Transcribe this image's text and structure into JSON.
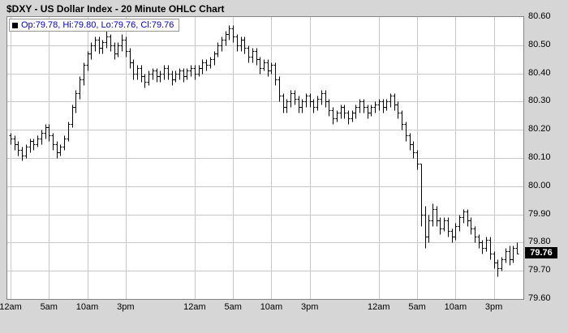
{
  "window": {
    "title": "$DXY - US Dollar Index - 20 Minute OHLC Chart"
  },
  "legend": {
    "text": "Op:79.78, Hi:79.80, Lo:79.76, Cl:79.76",
    "swatch_color": "#000000",
    "text_color": "#0000cc"
  },
  "chart_data": {
    "type": "ohlc",
    "title": "$DXY - US Dollar Index - 20 Minute OHLC Chart",
    "symbol": "$DXY",
    "interval": "20 Minute",
    "grid": true,
    "grid_color": "#c9c9c9",
    "bar_color": "#000000",
    "legend_position": "top-left",
    "y_axis_side": "right",
    "ylim": [
      79.6,
      80.6
    ],
    "y_ticks": [
      {
        "v": 80.6,
        "label": "80.60"
      },
      {
        "v": 80.5,
        "label": "80.50"
      },
      {
        "v": 80.4,
        "label": "80.40"
      },
      {
        "v": 80.3,
        "label": "80.30"
      },
      {
        "v": 80.2,
        "label": "80.20"
      },
      {
        "v": 80.1,
        "label": "80.10"
      },
      {
        "v": 80.0,
        "label": "80.00"
      },
      {
        "v": 79.9,
        "label": "79.90"
      },
      {
        "v": 79.8,
        "label": "79.80"
      },
      {
        "v": 79.7,
        "label": "79.70"
      },
      {
        "v": 79.6,
        "label": "79.60"
      }
    ],
    "x_ticks": [
      {
        "i": 0,
        "label": "12am"
      },
      {
        "i": 10,
        "label": "5am"
      },
      {
        "i": 20,
        "label": "10am"
      },
      {
        "i": 30,
        "label": "3pm"
      },
      {
        "i": 48,
        "label": "12am"
      },
      {
        "i": 58,
        "label": "5am"
      },
      {
        "i": 68,
        "label": "10am"
      },
      {
        "i": 78,
        "label": "3pm"
      },
      {
        "i": 96,
        "label": "12am"
      },
      {
        "i": 106,
        "label": "5am"
      },
      {
        "i": 116,
        "label": "10am"
      },
      {
        "i": 126,
        "label": "3pm"
      }
    ],
    "last_price": {
      "value": 79.76,
      "label": "79.76"
    },
    "last_bar": {
      "open": 79.78,
      "high": 79.8,
      "low": 79.76,
      "close": 79.76
    },
    "bars": [
      [
        80.18,
        80.19,
        80.15,
        80.17
      ],
      [
        80.17,
        80.18,
        80.13,
        80.15
      ],
      [
        80.15,
        80.16,
        80.11,
        80.13
      ],
      [
        80.13,
        80.14,
        80.09,
        80.11
      ],
      [
        80.11,
        80.15,
        80.1,
        80.14
      ],
      [
        80.14,
        80.17,
        80.12,
        80.16
      ],
      [
        80.16,
        80.17,
        80.13,
        80.15
      ],
      [
        80.15,
        80.18,
        80.14,
        80.17
      ],
      [
        80.17,
        80.2,
        80.15,
        80.19
      ],
      [
        80.19,
        80.22,
        80.17,
        80.21
      ],
      [
        80.21,
        80.22,
        80.16,
        80.18
      ],
      [
        80.18,
        80.19,
        80.13,
        80.15
      ],
      [
        80.15,
        80.16,
        80.1,
        80.12
      ],
      [
        80.12,
        80.15,
        80.11,
        80.14
      ],
      [
        80.14,
        80.18,
        80.13,
        80.17
      ],
      [
        80.17,
        80.23,
        80.16,
        80.22
      ],
      [
        80.22,
        80.29,
        80.21,
        80.28
      ],
      [
        80.28,
        80.34,
        80.26,
        80.33
      ],
      [
        80.33,
        80.39,
        80.31,
        80.38
      ],
      [
        80.38,
        80.44,
        80.36,
        80.43
      ],
      [
        80.43,
        80.48,
        80.41,
        80.47
      ],
      [
        80.47,
        80.51,
        80.45,
        80.5
      ],
      [
        80.5,
        80.53,
        80.48,
        80.52
      ],
      [
        80.52,
        80.53,
        80.47,
        80.49
      ],
      [
        80.49,
        80.52,
        80.47,
        80.51
      ],
      [
        80.51,
        80.55,
        80.49,
        80.53
      ],
      [
        80.53,
        80.54,
        80.48,
        80.5
      ],
      [
        80.5,
        80.51,
        80.45,
        80.47
      ],
      [
        80.47,
        80.51,
        80.46,
        80.5
      ],
      [
        80.5,
        80.54,
        80.48,
        80.52
      ],
      [
        80.52,
        80.53,
        80.46,
        80.48
      ],
      [
        80.48,
        80.49,
        80.42,
        80.44
      ],
      [
        80.44,
        80.45,
        80.38,
        80.4
      ],
      [
        80.4,
        80.43,
        80.38,
        80.42
      ],
      [
        80.42,
        80.43,
        80.37,
        80.39
      ],
      [
        80.39,
        80.4,
        80.35,
        80.37
      ],
      [
        80.37,
        80.41,
        80.36,
        80.4
      ],
      [
        80.4,
        80.42,
        80.38,
        80.41
      ],
      [
        80.41,
        80.42,
        80.37,
        80.39
      ],
      [
        80.39,
        80.41,
        80.37,
        80.4
      ],
      [
        80.4,
        80.43,
        80.38,
        80.42
      ],
      [
        80.42,
        80.43,
        80.38,
        80.4
      ],
      [
        80.4,
        80.41,
        80.36,
        80.38
      ],
      [
        80.38,
        80.41,
        80.37,
        80.4
      ],
      [
        80.4,
        80.42,
        80.38,
        80.41
      ],
      [
        80.41,
        80.42,
        80.37,
        80.39
      ],
      [
        80.39,
        80.42,
        80.38,
        80.41
      ],
      [
        80.41,
        80.43,
        80.39,
        80.42
      ],
      [
        80.42,
        80.43,
        80.38,
        80.4
      ],
      [
        80.4,
        80.43,
        80.39,
        80.42
      ],
      [
        80.42,
        80.45,
        80.4,
        80.44
      ],
      [
        80.44,
        80.45,
        80.41,
        80.43
      ],
      [
        80.43,
        80.46,
        80.42,
        80.45
      ],
      [
        80.45,
        80.48,
        80.43,
        80.47
      ],
      [
        80.47,
        80.51,
        80.46,
        80.5
      ],
      [
        80.5,
        80.53,
        80.48,
        80.52
      ],
      [
        80.52,
        80.55,
        80.5,
        80.54
      ],
      [
        80.54,
        80.57,
        80.52,
        80.56
      ],
      [
        80.56,
        80.57,
        80.51,
        80.53
      ],
      [
        80.53,
        80.54,
        80.48,
        80.5
      ],
      [
        80.5,
        80.53,
        80.48,
        80.52
      ],
      [
        80.52,
        80.53,
        80.47,
        80.49
      ],
      [
        80.49,
        80.5,
        80.44,
        80.46
      ],
      [
        80.46,
        80.49,
        80.44,
        80.48
      ],
      [
        80.48,
        80.49,
        80.43,
        80.45
      ],
      [
        80.45,
        80.46,
        80.4,
        80.42
      ],
      [
        80.42,
        80.45,
        80.41,
        80.44
      ],
      [
        80.44,
        80.45,
        80.39,
        80.41
      ],
      [
        80.41,
        80.44,
        80.4,
        80.43
      ],
      [
        80.43,
        80.44,
        80.36,
        80.38
      ],
      [
        80.38,
        80.39,
        80.3,
        80.32
      ],
      [
        80.32,
        80.33,
        80.26,
        80.28
      ],
      [
        80.28,
        80.31,
        80.26,
        80.3
      ],
      [
        80.3,
        80.34,
        80.28,
        80.33
      ],
      [
        80.33,
        80.34,
        80.29,
        80.31
      ],
      [
        80.31,
        80.32,
        80.26,
        80.28
      ],
      [
        80.28,
        80.31,
        80.26,
        80.3
      ],
      [
        80.3,
        80.33,
        80.28,
        80.32
      ],
      [
        80.32,
        80.33,
        80.28,
        80.3
      ],
      [
        80.3,
        80.31,
        80.26,
        80.28
      ],
      [
        80.28,
        80.32,
        80.27,
        80.31
      ],
      [
        80.31,
        80.34,
        80.29,
        80.33
      ],
      [
        80.33,
        80.34,
        80.28,
        80.3
      ],
      [
        80.3,
        80.31,
        80.25,
        80.27
      ],
      [
        80.27,
        80.28,
        80.22,
        80.24
      ],
      [
        80.24,
        80.27,
        80.23,
        80.26
      ],
      [
        80.26,
        80.29,
        80.24,
        80.28
      ],
      [
        80.28,
        80.29,
        80.24,
        80.26
      ],
      [
        80.26,
        80.27,
        80.22,
        80.24
      ],
      [
        80.24,
        80.27,
        80.23,
        80.26
      ],
      [
        80.26,
        80.29,
        80.24,
        80.28
      ],
      [
        80.28,
        80.31,
        80.26,
        80.3
      ],
      [
        80.3,
        80.31,
        80.26,
        80.28
      ],
      [
        80.28,
        80.29,
        80.24,
        80.26
      ],
      [
        80.26,
        80.29,
        80.25,
        80.28
      ],
      [
        80.28,
        80.3,
        80.26,
        80.29
      ],
      [
        80.29,
        80.31,
        80.27,
        80.3
      ],
      [
        80.3,
        80.31,
        80.26,
        80.28
      ],
      [
        80.28,
        80.31,
        80.27,
        80.3
      ],
      [
        80.3,
        80.33,
        80.28,
        80.32
      ],
      [
        80.32,
        80.33,
        80.27,
        80.29
      ],
      [
        80.29,
        80.3,
        80.24,
        80.26
      ],
      [
        80.26,
        80.27,
        80.2,
        80.22
      ],
      [
        80.22,
        80.23,
        80.16,
        80.18
      ],
      [
        80.18,
        80.19,
        80.13,
        80.15
      ],
      [
        80.15,
        80.16,
        80.1,
        80.12
      ],
      [
        80.12,
        80.13,
        80.06,
        80.08
      ],
      [
        80.08,
        80.08,
        79.86,
        79.9
      ],
      [
        79.9,
        79.93,
        79.78,
        79.82
      ],
      [
        79.82,
        79.9,
        79.8,
        79.88
      ],
      [
        79.88,
        79.94,
        79.86,
        79.92
      ],
      [
        79.92,
        79.93,
        79.86,
        79.88
      ],
      [
        79.88,
        79.89,
        79.83,
        79.85
      ],
      [
        79.85,
        79.89,
        79.84,
        79.88
      ],
      [
        79.88,
        79.89,
        79.82,
        79.84
      ],
      [
        79.84,
        79.85,
        79.8,
        79.82
      ],
      [
        79.82,
        79.87,
        79.81,
        79.86
      ],
      [
        79.86,
        79.9,
        79.84,
        79.89
      ],
      [
        79.89,
        79.92,
        79.87,
        79.91
      ],
      [
        79.91,
        79.92,
        79.86,
        79.88
      ],
      [
        79.88,
        79.89,
        79.83,
        79.85
      ],
      [
        79.85,
        79.86,
        79.8,
        79.82
      ],
      [
        79.82,
        79.83,
        79.78,
        79.8
      ],
      [
        79.8,
        79.81,
        79.76,
        79.78
      ],
      [
        79.78,
        79.82,
        79.77,
        79.81
      ],
      [
        79.81,
        79.82,
        79.74,
        79.76
      ],
      [
        79.76,
        79.77,
        79.71,
        79.73
      ],
      [
        79.73,
        79.74,
        79.68,
        79.71
      ],
      [
        79.71,
        79.75,
        79.7,
        79.74
      ],
      [
        79.74,
        79.78,
        79.73,
        79.77
      ],
      [
        79.77,
        79.79,
        79.72,
        79.74
      ],
      [
        79.74,
        79.79,
        79.73,
        79.78
      ],
      [
        79.78,
        79.8,
        79.76,
        79.76
      ]
    ]
  }
}
